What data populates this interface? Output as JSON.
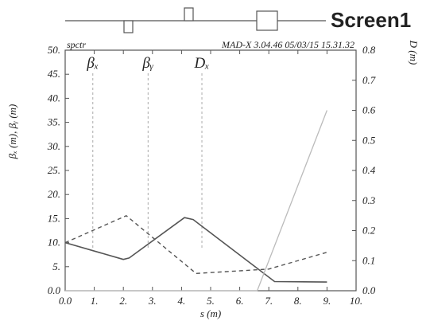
{
  "screen_label": "Screen1",
  "colors": {
    "screen_label": "#ff1a1a",
    "axes": "#555555",
    "beta_x": "#555555",
    "beta_y": "#555555",
    "dispersion": "#bbbbbb",
    "marker": "#aaaaaa",
    "element_outline": "#555555"
  },
  "chart_data": {
    "type": "line",
    "header_left": "spctr",
    "header_right": "MAD-X 3.04.46  05/03/15 15.31.32",
    "xlabel": "s (m)",
    "ylabel_left": "βₓ (m), βᵧ (m)",
    "ylabel_right": "D (m)",
    "xlim": [
      0,
      10
    ],
    "ylim_left": [
      0,
      50
    ],
    "ylim_right": [
      0,
      0.8
    ],
    "x_ticks": [
      "0.0",
      "1.",
      "2.",
      "3.",
      "4.",
      "5.",
      "6.",
      "7.",
      "8.",
      "9.",
      "10."
    ],
    "y_left_ticks": [
      "0.0",
      "5.",
      "10.",
      "15.",
      "20.",
      "25.",
      "30.",
      "35.",
      "40.",
      "45.",
      "50."
    ],
    "y_right_ticks": [
      "0.0",
      "0.1",
      "0.2",
      "0.3",
      "0.4",
      "0.5",
      "0.6",
      "0.7",
      "0.8"
    ],
    "grid": false,
    "series": [
      {
        "name": "βₓ",
        "axis": "left",
        "style": "solid",
        "x": [
          0,
          2.0,
          2.2,
          4.1,
          4.4,
          7.2,
          9.0
        ],
        "y": [
          10.0,
          6.5,
          6.8,
          15.2,
          14.8,
          1.9,
          1.8
        ]
      },
      {
        "name": "βᵧ",
        "axis": "left",
        "style": "dashed",
        "x": [
          0,
          2.1,
          4.5,
          7.0,
          9.0
        ],
        "y": [
          10.0,
          15.6,
          3.6,
          4.5,
          8.0
        ]
      },
      {
        "name": "Dₓ",
        "axis": "right",
        "style": "solid-light",
        "x": [
          0,
          6.6,
          9.0
        ],
        "y": [
          0,
          0,
          0.6
        ]
      }
    ],
    "markers": [
      {
        "label": "βₓ",
        "x": 0.95
      },
      {
        "label": "βᵧ",
        "x": 2.85
      },
      {
        "label": "Dₓ",
        "x": 4.7
      }
    ]
  }
}
